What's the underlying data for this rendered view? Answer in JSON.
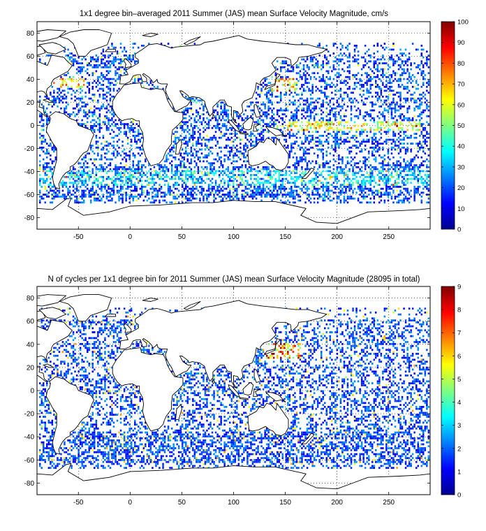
{
  "panels": [
    {
      "title": "1x1 degree bin–averaged 2011 Summer (JAS) mean Surface Velocity Magnitude, cm/s",
      "colorbar": {
        "min": 0,
        "max": 100,
        "ticks": [
          "0",
          "10",
          "20",
          "30",
          "40",
          "50",
          "60",
          "70",
          "80",
          "90",
          "100"
        ]
      }
    },
    {
      "title": "N of cycles per 1x1 degree bin for 2011 Summer (JAS) mean Surface Velocity Magnitude (28095 in total)",
      "colorbar": {
        "min": 0,
        "max": 9,
        "ticks": [
          "0",
          "1",
          "2",
          "3",
          "4",
          "5",
          "6",
          "7",
          "8",
          "9"
        ]
      }
    }
  ],
  "axes": {
    "x_ticks": [
      "-50",
      "0",
      "50",
      "100",
      "150",
      "200",
      "250"
    ],
    "y_ticks": [
      "80",
      "60",
      "40",
      "20",
      "0",
      "-20",
      "-40",
      "-60",
      "-80"
    ],
    "xlim": [
      -90,
      290
    ],
    "ylim": [
      -90,
      90
    ],
    "grid": "dotted"
  },
  "colormap": "jet"
}
